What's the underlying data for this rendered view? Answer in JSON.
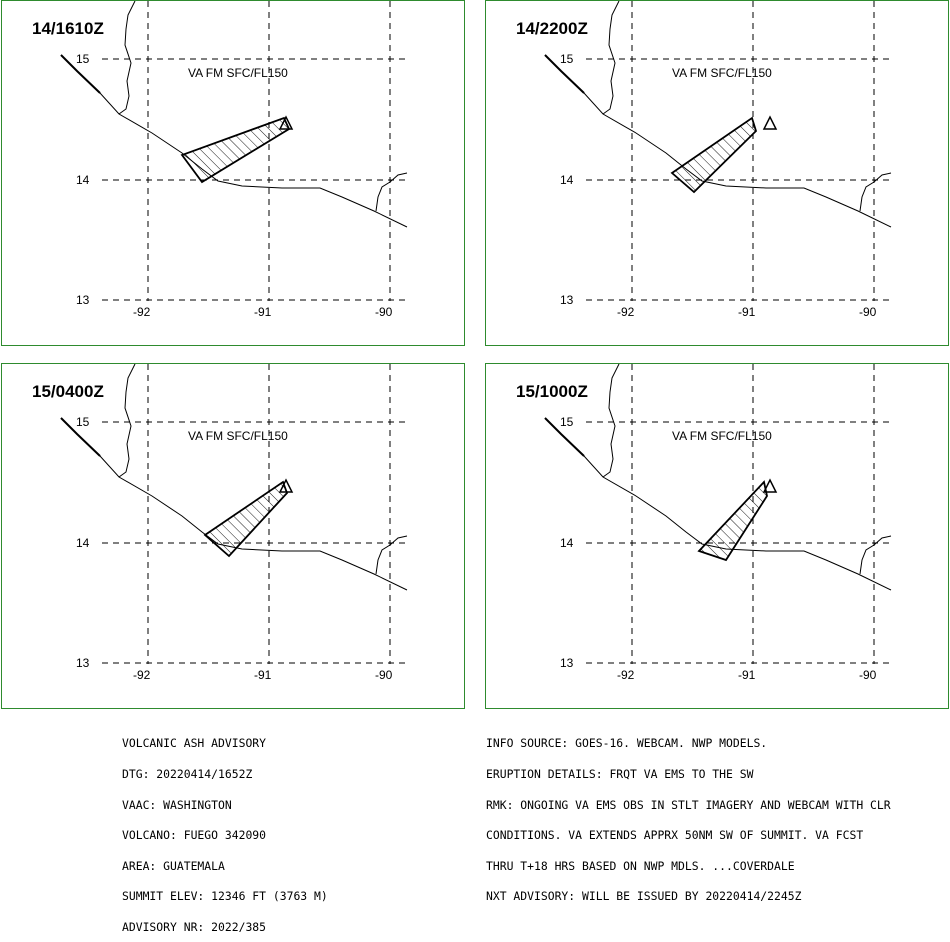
{
  "colors": {
    "panel_border": "#2e8b2e",
    "line": "#000000"
  },
  "axes": {
    "lat_ticks": [
      "15",
      "14",
      "13"
    ],
    "lon_ticks": [
      "-92",
      "-91",
      "-90"
    ]
  },
  "panels": [
    {
      "title": "14/1610Z",
      "label": "VA FM SFC/FL150"
    },
    {
      "title": "14/2200Z",
      "label": "VA FM SFC/FL150"
    },
    {
      "title": "15/0400Z",
      "label": "VA FM SFC/FL150"
    },
    {
      "title": "15/1000Z",
      "label": "VA FM SFC/FL150"
    }
  ],
  "advisory_left": [
    "VOLCANIC ASH ADVISORY",
    "DTG: 20220414/1652Z",
    "VAAC: WASHINGTON",
    "VOLCANO: FUEGO 342090",
    "AREA: GUATEMALA",
    "SUMMIT ELEV: 12346 FT (3763 M)",
    "ADVISORY NR: 2022/385"
  ],
  "advisory_right": [
    "INFO SOURCE: GOES-16. WEBCAM. NWP MODELS.",
    "ERUPTION DETAILS: FRQT VA EMS TO THE SW",
    "RMK: ONGOING VA EMS OBS IN STLT IMAGERY AND WEBCAM WITH CLR",
    "CONDITIONS. VA EXTENDS APPRX 50NM SW OF SUMMIT. VA FCST",
    "THRU T+18 HRS BASED ON NWP MDLS. ...COVERDALE",
    "NXT ADVISORY: WILL BE ISSUED BY 20220414/2245Z"
  ]
}
